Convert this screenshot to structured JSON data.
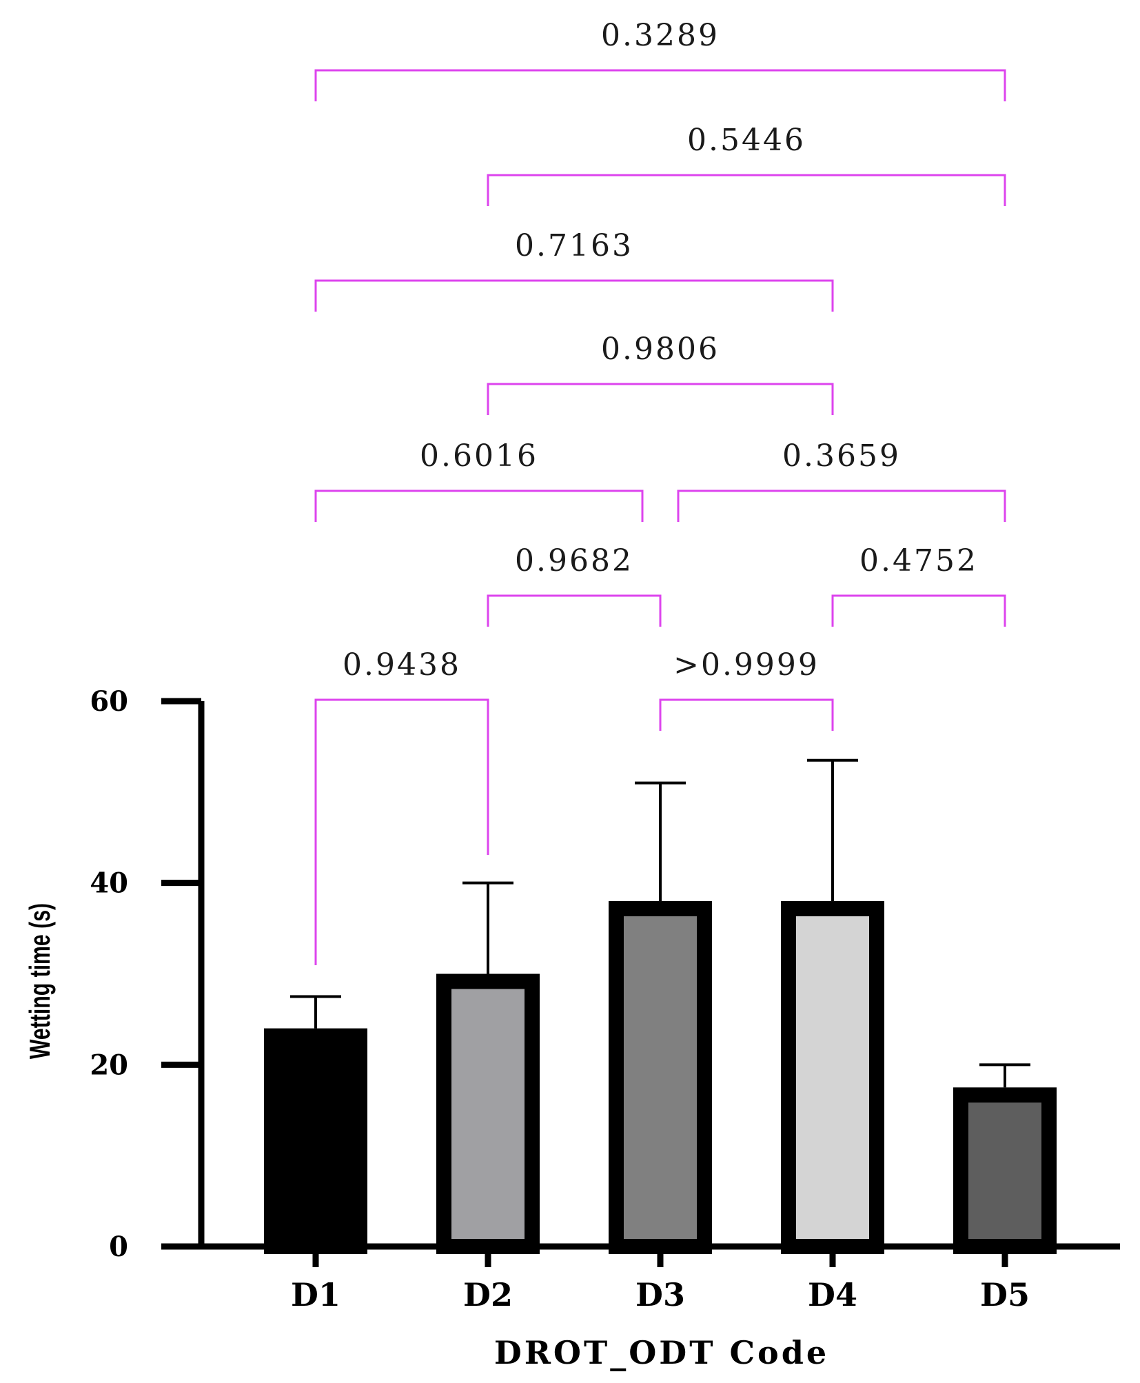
{
  "chart_data": {
    "type": "bar",
    "title": "",
    "xlabel": "DROT_ODT Code",
    "ylabel": "Wetting time (s)",
    "ylim": [
      0,
      60
    ],
    "yticks": [
      0,
      20,
      40,
      60
    ],
    "categories": [
      "D1",
      "D2",
      "D3",
      "D4",
      "D5"
    ],
    "values": [
      24,
      30,
      38,
      38,
      17.5
    ],
    "errors": [
      3.5,
      10,
      13,
      15.5,
      2.5
    ],
    "colors": [
      "#000000",
      "#a0a0a3",
      "#808080",
      "#d4d4d4",
      "#5e5e5e"
    ],
    "bracket_color": "#dd44ee",
    "comparisons": [
      {
        "a": 0,
        "b": 1,
        "p": "0.9438"
      },
      {
        "a": 2,
        "b": 3,
        "p": ">0.9999"
      },
      {
        "a": 1,
        "b": 2,
        "p": "0.9682"
      },
      {
        "a": 3,
        "b": 4,
        "p": "0.4752"
      },
      {
        "a": 0,
        "b": 2,
        "p": "0.6016"
      },
      {
        "a": 2,
        "b": 4,
        "p": "0.3659"
      },
      {
        "a": 1,
        "b": 3,
        "p": "0.9806"
      },
      {
        "a": 0,
        "b": 3,
        "p": "0.7163"
      },
      {
        "a": 1,
        "b": 4,
        "p": "0.5446"
      },
      {
        "a": 0,
        "b": 4,
        "p": "0.3289"
      }
    ]
  }
}
